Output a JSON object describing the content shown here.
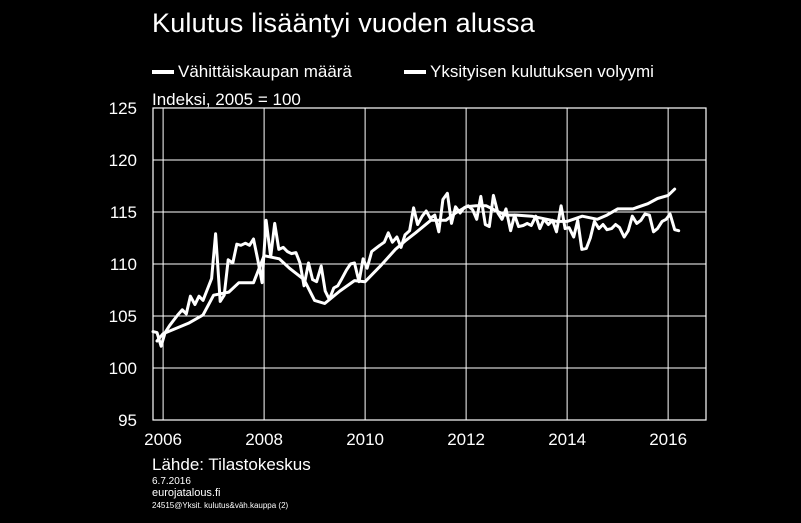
{
  "title": "Kulutus lisääntyi vuoden alussa",
  "unit_label": "Indeksi, 2005 = 100",
  "source": "Lähde: Tilastokeskus",
  "footer": {
    "date": "6.7.2016",
    "site": "eurojatalous.fi",
    "code": "24515@Yksit. kulutus&väh.kauppa (2)"
  },
  "colors": {
    "background": "#000000",
    "foreground": "#ffffff"
  },
  "chart_data": {
    "type": "line",
    "title": "Kulutus lisääntyi vuoden alussa",
    "ylabel": "Indeksi, 2005 = 100",
    "xlim": [
      2005.8,
      2016.75
    ],
    "ylim": [
      95,
      125
    ],
    "yticks": [
      95,
      100,
      105,
      110,
      115,
      120,
      125
    ],
    "xticks": [
      2006,
      2008,
      2010,
      2012,
      2014,
      2016
    ],
    "grid": true,
    "legend_position": "top",
    "series": [
      {
        "name": "Vähittäiskaupan määrä",
        "x": [
          2005.8,
          2005.88,
          2005.96,
          2006.04,
          2006.13,
          2006.21,
          2006.29,
          2006.38,
          2006.46,
          2006.54,
          2006.63,
          2006.71,
          2006.79,
          2006.88,
          2006.96,
          2007.04,
          2007.13,
          2007.21,
          2007.29,
          2007.38,
          2007.46,
          2007.54,
          2007.63,
          2007.71,
          2007.79,
          2007.88,
          2007.96,
          2008.04,
          2008.13,
          2008.21,
          2008.29,
          2008.38,
          2008.46,
          2008.54,
          2008.63,
          2008.71,
          2008.79,
          2008.88,
          2008.96,
          2009.04,
          2009.13,
          2009.21,
          2009.29,
          2009.38,
          2009.46,
          2009.54,
          2009.63,
          2009.71,
          2009.79,
          2009.88,
          2009.96,
          2010.04,
          2010.13,
          2010.21,
          2010.29,
          2010.38,
          2010.46,
          2010.54,
          2010.63,
          2010.71,
          2010.79,
          2010.88,
          2010.96,
          2011.04,
          2011.13,
          2011.21,
          2011.29,
          2011.38,
          2011.46,
          2011.54,
          2011.63,
          2011.71,
          2011.79,
          2011.88,
          2011.96,
          2012.04,
          2012.13,
          2012.21,
          2012.29,
          2012.38,
          2012.46,
          2012.54,
          2012.63,
          2012.71,
          2012.79,
          2012.88,
          2012.96,
          2013.04,
          2013.13,
          2013.21,
          2013.29,
          2013.38,
          2013.46,
          2013.54,
          2013.63,
          2013.71,
          2013.79,
          2013.88,
          2013.96,
          2014.04,
          2014.13,
          2014.21,
          2014.29,
          2014.38,
          2014.46,
          2014.54,
          2014.63,
          2014.71,
          2014.79,
          2014.88,
          2014.96,
          2015.04,
          2015.13,
          2015.21,
          2015.29,
          2015.38,
          2015.46,
          2015.54,
          2015.63,
          2015.71,
          2015.79,
          2015.88,
          2015.96,
          2016.04,
          2016.13,
          2016.21
        ],
        "values": [
          103.5,
          103.4,
          102.1,
          103.4,
          104.1,
          104.6,
          105.1,
          105.6,
          105.2,
          106.9,
          106.1,
          106.9,
          106.5,
          107.6,
          108.6,
          112.9,
          106.4,
          107.0,
          110.4,
          110.1,
          111.9,
          111.8,
          112.0,
          111.8,
          112.4,
          110.3,
          108.2,
          114.2,
          110.7,
          113.9,
          111.4,
          111.6,
          111.2,
          111.0,
          111.1,
          110.1,
          107.9,
          110.1,
          108.5,
          108.3,
          109.8,
          107.4,
          106.6,
          107.7,
          107.9,
          108.6,
          109.4,
          110.0,
          110.1,
          108.3,
          110.5,
          109.6,
          111.2,
          111.5,
          111.8,
          112.1,
          113.0,
          112.1,
          112.6,
          111.6,
          112.8,
          113.2,
          115.4,
          113.8,
          114.6,
          115.1,
          114.4,
          114.7,
          113.1,
          116.2,
          116.8,
          113.9,
          115.5,
          114.9,
          115.4,
          115.6,
          115.2,
          114.3,
          116.5,
          113.8,
          113.6,
          116.6,
          114.9,
          114.3,
          115.3,
          113.2,
          114.7,
          113.6,
          113.7,
          113.9,
          113.7,
          114.6,
          113.4,
          114.3,
          113.8,
          114.2,
          113.1,
          115.6,
          113.4,
          113.5,
          112.6,
          114.2,
          111.4,
          111.5,
          112.5,
          114.1,
          113.4,
          113.8,
          113.3,
          113.4,
          113.8,
          113.5,
          112.6,
          113.2,
          114.6,
          113.9,
          114.2,
          114.8,
          114.7,
          113.1,
          113.4,
          114.1,
          114.3,
          114.8,
          113.3,
          113.2
        ],
        "color": "#ffffff"
      },
      {
        "name": "Yksityisen kulutuksen volyymi",
        "x": [
          2005.88,
          2006.0,
          2006.5,
          2006.79,
          2007.0,
          2007.3,
          2007.5,
          2007.79,
          2008.0,
          2008.3,
          2008.5,
          2008.79,
          2009.0,
          2009.2,
          2009.5,
          2009.79,
          2010.0,
          2010.3,
          2010.6,
          2010.79,
          2011.0,
          2011.3,
          2011.6,
          2011.79,
          2012.0,
          2012.2,
          2012.4,
          2012.6,
          2012.79,
          2013.0,
          2013.3,
          2013.6,
          2013.79,
          2014.0,
          2014.3,
          2014.6,
          2014.79,
          2015.0,
          2015.3,
          2015.6,
          2015.79,
          2016.0,
          2016.13
        ],
        "values": [
          102.6,
          103.3,
          104.3,
          105.1,
          107.0,
          107.3,
          108.2,
          108.2,
          110.8,
          110.5,
          109.6,
          108.5,
          106.5,
          106.2,
          107.4,
          108.4,
          108.3,
          109.8,
          111.4,
          112.2,
          113.0,
          114.2,
          114.2,
          114.9,
          115.5,
          115.6,
          115.6,
          115.1,
          114.7,
          114.7,
          114.6,
          114.3,
          114.1,
          114.1,
          114.6,
          114.3,
          114.7,
          115.3,
          115.3,
          115.8,
          116.3,
          116.6,
          117.2
        ],
        "color": "#ffffff"
      }
    ]
  }
}
